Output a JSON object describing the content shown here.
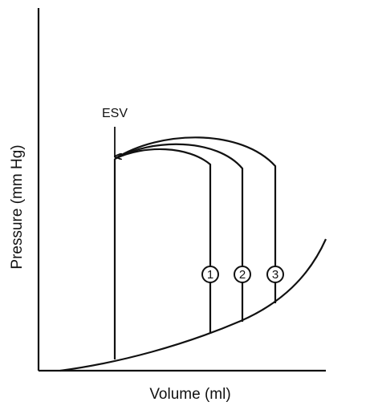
{
  "axes": {
    "y_label": "Pressure (mm Hg)",
    "x_label": "Volume (ml)"
  },
  "annotations": {
    "esv": "ESV"
  },
  "loops": [
    {
      "label": "1"
    },
    {
      "label": "2"
    },
    {
      "label": "3"
    }
  ]
}
